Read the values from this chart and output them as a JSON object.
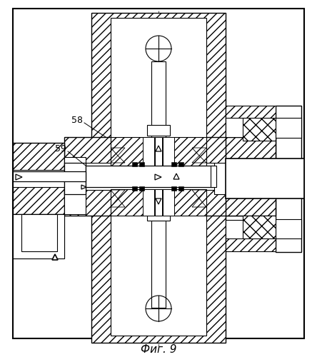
{
  "title": "Фиг. 9",
  "bg_color": "#ffffff",
  "line_color": "#000000",
  "label_58": "58",
  "label_59": "59",
  "figsize": [
    4.44,
    5.0
  ],
  "dpi": 100
}
